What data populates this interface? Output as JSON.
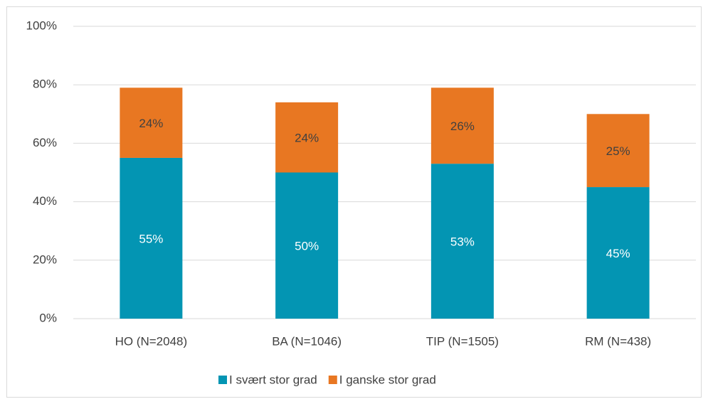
{
  "chart_data": {
    "type": "stacked_bar",
    "categories": [
      "HO (N=2048)",
      "BA (N=1046)",
      "TIP (N=1505)",
      "RM (N=438)"
    ],
    "series": [
      {
        "name": "I svært stor grad",
        "color": "#0395b3",
        "values": [
          55,
          50,
          53,
          45
        ],
        "value_labels": [
          "55%",
          "50%",
          "53%",
          "45%"
        ]
      },
      {
        "name": "I ganske stor grad",
        "color": "#e87722",
        "values": [
          24,
          24,
          26,
          25
        ],
        "value_labels": [
          "24%",
          "24%",
          "26%",
          "25%"
        ]
      }
    ],
    "ylim": [
      0,
      100
    ],
    "yticks": [
      {
        "value": 0,
        "label": "0%"
      },
      {
        "value": 20,
        "label": "20%"
      },
      {
        "value": 40,
        "label": "40%"
      },
      {
        "value": 60,
        "label": "60%"
      },
      {
        "value": 80,
        "label": "80%"
      },
      {
        "value": 100,
        "label": "100%"
      }
    ],
    "grid": true,
    "legend": "bottom"
  }
}
